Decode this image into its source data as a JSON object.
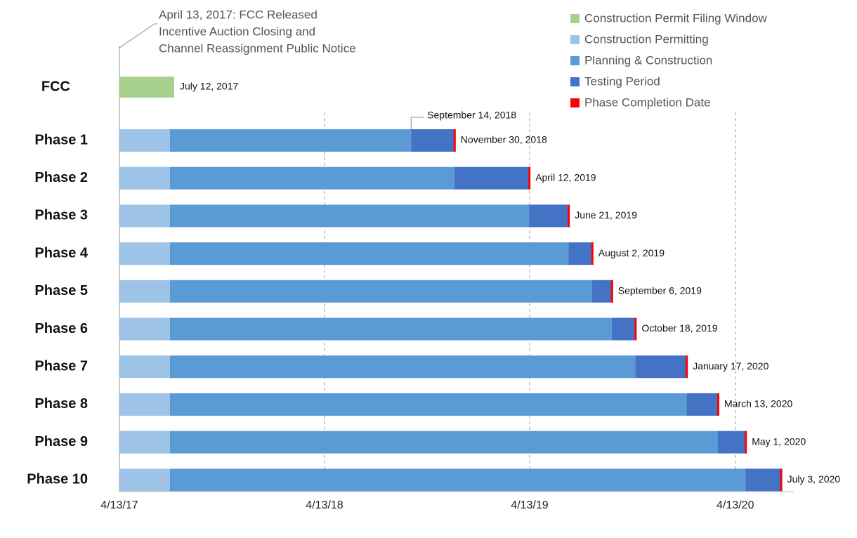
{
  "chart_data": {
    "type": "bar",
    "subtype": "stacked-horizontal-timeline",
    "x_axis": {
      "ticks": [
        "4/13/17",
        "4/13/18",
        "4/13/19",
        "4/13/20"
      ],
      "range": [
        "2017-04-13",
        "2020-08-05"
      ],
      "grid": "vertical dashed at yearly ticks"
    },
    "annotation": {
      "lines": [
        "April 13, 2017: FCC Released",
        "Incentive Auction Closing and",
        "Channel Reassignment Public Notice"
      ],
      "date": "2017-04-13"
    },
    "legend": {
      "placement": "top-right",
      "items": [
        {
          "label": "Construction Permit Filing Window",
          "color": "#a9d18e"
        },
        {
          "label": "Construction Permitting",
          "color": "#9dc3e6"
        },
        {
          "label": "Planning & Construction",
          "color": "#5b9bd5"
        },
        {
          "label": "Testing Period",
          "color": "#4472c4"
        },
        {
          "label": "Phase Completion Date",
          "color": "#ff0000"
        }
      ]
    },
    "fcc_row": {
      "label": "FCC",
      "start": "2017-04-13",
      "end": "2017-07-12",
      "end_label": "July 12, 2017"
    },
    "phases": [
      {
        "label": "Phase 1",
        "start": "2017-04-13",
        "permitting_end": "2017-07-12",
        "testing_start": "2018-09-14",
        "completion": "2018-11-30",
        "completion_label": "November 30, 2018",
        "testing_start_label": "September 14, 2018"
      },
      {
        "label": "Phase 2",
        "start": "2017-04-13",
        "permitting_end": "2017-07-12",
        "testing_start": "2018-11-30",
        "completion": "2019-04-12",
        "completion_label": "April 12, 2019"
      },
      {
        "label": "Phase 3",
        "start": "2017-04-13",
        "permitting_end": "2017-07-12",
        "testing_start": "2019-04-12",
        "completion": "2019-06-21",
        "completion_label": "June 21, 2019"
      },
      {
        "label": "Phase 4",
        "start": "2017-04-13",
        "permitting_end": "2017-07-12",
        "testing_start": "2019-06-21",
        "completion": "2019-08-02",
        "completion_label": "August 2, 2019"
      },
      {
        "label": "Phase 5",
        "start": "2017-04-13",
        "permitting_end": "2017-07-12",
        "testing_start": "2019-08-02",
        "completion": "2019-09-06",
        "completion_label": "September 6, 2019"
      },
      {
        "label": "Phase 6",
        "start": "2017-04-13",
        "permitting_end": "2017-07-12",
        "testing_start": "2019-09-06",
        "completion": "2019-10-18",
        "completion_label": "October 18, 2019"
      },
      {
        "label": "Phase 7",
        "start": "2017-04-13",
        "permitting_end": "2017-07-12",
        "testing_start": "2019-10-18",
        "completion": "2020-01-17",
        "completion_label": "January 17, 2020"
      },
      {
        "label": "Phase 8",
        "start": "2017-04-13",
        "permitting_end": "2017-07-12",
        "testing_start": "2020-01-17",
        "completion": "2020-03-13",
        "completion_label": "March 13, 2020"
      },
      {
        "label": "Phase 9",
        "start": "2017-04-13",
        "permitting_end": "2017-07-12",
        "testing_start": "2020-03-13",
        "completion": "2020-05-01",
        "completion_label": "May 1, 2020"
      },
      {
        "label": "Phase 10",
        "start": "2017-04-13",
        "permitting_end": "2017-07-12",
        "testing_start": "2020-05-01",
        "completion": "2020-07-03",
        "completion_label": "July 3, 2020"
      }
    ]
  }
}
